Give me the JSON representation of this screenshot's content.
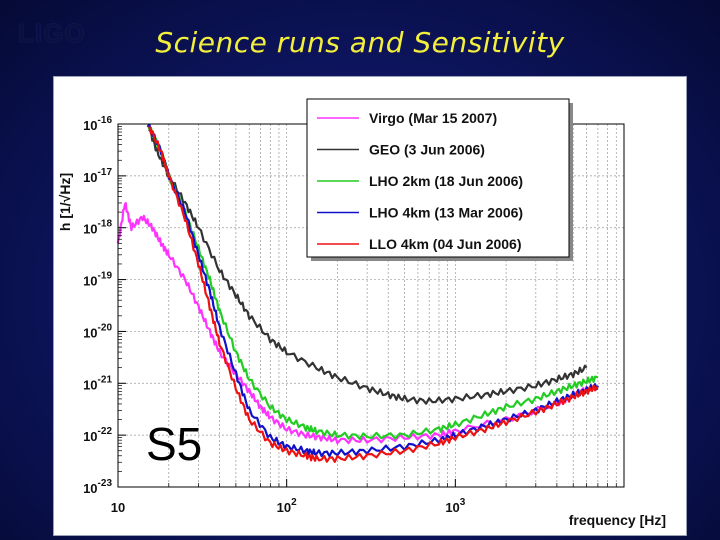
{
  "slide": {
    "logo": "LIGO",
    "title": "Science runs and Sensitivity"
  },
  "colors": {
    "background": "#0d145c",
    "title": "#f4ef3a",
    "Virgo": "#ff33ff",
    "GEO": "#333333",
    "LHO2km": "#22cc22",
    "LHO4km": "#1111cc",
    "LLO4km": "#ee1111"
  },
  "chart_data": {
    "type": "line",
    "title": "",
    "xlabel": "frequency [Hz]",
    "ylabel": "h [1/√Hz]",
    "xscale": "log",
    "yscale": "log",
    "xlim": [
      10,
      10000
    ],
    "ylim": [
      1e-23,
      1e-16
    ],
    "grid": true,
    "legend": "top-right",
    "annotation": "S5",
    "x_tick_labels": [
      {
        "value": 10,
        "base": "10",
        "exp": ""
      },
      {
        "value": 100,
        "base": "10",
        "exp": "2"
      },
      {
        "value": 1000,
        "base": "10",
        "exp": "3"
      }
    ],
    "y_tick_labels": [
      {
        "value": 1e-16,
        "base": "10",
        "exp": "-16"
      },
      {
        "value": 1e-17,
        "base": "10",
        "exp": "-17"
      },
      {
        "value": 1e-18,
        "base": "10",
        "exp": "-18"
      },
      {
        "value": 1e-19,
        "base": "10",
        "exp": "-19"
      },
      {
        "value": 1e-20,
        "base": "10",
        "exp": "-20"
      },
      {
        "value": 1e-21,
        "base": "10",
        "exp": "-21"
      },
      {
        "value": 1e-22,
        "base": "10",
        "exp": "-22"
      },
      {
        "value": 1e-23,
        "base": "10",
        "exp": "-23"
      }
    ],
    "series": [
      {
        "name": "Virgo (Mar 15 2007)",
        "color_key": "Virgo",
        "x": [
          10,
          11,
          12,
          14,
          16,
          18,
          20,
          25,
          30,
          35,
          40,
          50,
          60,
          70,
          80,
          100,
          130,
          160,
          200,
          300,
          500,
          800,
          1000,
          2000,
          4000,
          5000,
          6000
        ],
        "y": [
          5e-19,
          3e-18,
          1e-18,
          1.6e-18,
          1e-18,
          5e-19,
          3e-19,
          1e-19,
          3e-20,
          1e-20,
          4e-21,
          1.5e-21,
          7e-22,
          3.5e-22,
          2.2e-22,
          1.3e-22,
          1e-22,
          9e-23,
          8e-23,
          8e-23,
          9e-23,
          1e-22,
          1.2e-22,
          2e-22,
          4e-22,
          6e-22,
          8e-22
        ]
      },
      {
        "name": "GEO (3 Jun 2006)",
        "color_key": "GEO",
        "x": [
          15,
          17,
          20,
          25,
          30,
          40,
          50,
          60,
          80,
          100,
          150,
          200,
          300,
          400,
          500,
          700,
          1000,
          1500,
          2000,
          3000,
          4000,
          5000,
          6000
        ],
        "y": [
          1e-16,
          3e-17,
          1e-17,
          3e-18,
          1e-18,
          1.5e-19,
          5e-20,
          2e-20,
          7e-21,
          4e-21,
          2e-21,
          1.3e-21,
          8e-22,
          6e-22,
          5e-22,
          4.5e-22,
          5e-22,
          6e-22,
          7e-22,
          9e-22,
          1.2e-21,
          1.5e-21,
          2e-21
        ]
      },
      {
        "name": "LHO 2km (18 Jun 2006)",
        "color_key": "LHO2km",
        "x": [
          15,
          18,
          20,
          25,
          30,
          35,
          40,
          50,
          60,
          80,
          100,
          130,
          150,
          200,
          300,
          500,
          800,
          1000,
          1500,
          2000,
          3000,
          4000,
          5000,
          6000,
          7000
        ],
        "y": [
          1e-16,
          3e-17,
          1e-17,
          2e-18,
          4e-19,
          1e-19,
          2.5e-20,
          4e-21,
          1.2e-21,
          3.5e-22,
          2e-22,
          1.4e-22,
          1.2e-22,
          1e-22,
          9.5e-23,
          1e-22,
          1.3e-22,
          1.6e-22,
          2.5e-22,
          3.5e-22,
          5e-22,
          7e-22,
          9e-22,
          1.1e-21,
          1.3e-21
        ]
      },
      {
        "name": "LHO 4km (13 Mar 2006)",
        "color_key": "LHO4km",
        "x": [
          15,
          18,
          20,
          25,
          30,
          35,
          40,
          50,
          60,
          80,
          100,
          130,
          150,
          200,
          300,
          500,
          800,
          1000,
          1500,
          2000,
          3000,
          4000,
          5000,
          6000,
          7000
        ],
        "y": [
          1e-16,
          3e-17,
          1e-17,
          2e-18,
          3e-19,
          6e-20,
          1.2e-20,
          1.5e-21,
          3e-22,
          9e-23,
          6e-23,
          5e-23,
          4.5e-23,
          4.5e-23,
          5e-23,
          6e-23,
          8e-23,
          1e-22,
          1.5e-22,
          2e-22,
          3e-22,
          4.5e-22,
          6e-22,
          7.5e-22,
          9e-22
        ]
      },
      {
        "name": "LLO 4km (04 Jun 2006)",
        "color_key": "LLO4km",
        "x": [
          15,
          18,
          20,
          25,
          30,
          35,
          40,
          50,
          60,
          80,
          100,
          130,
          150,
          200,
          300,
          500,
          800,
          1000,
          1500,
          2000,
          3000,
          4000,
          5000,
          6000,
          7000
        ],
        "y": [
          1e-16,
          3e-17,
          1e-17,
          1.5e-18,
          2e-19,
          3e-20,
          6e-21,
          8e-22,
          2e-22,
          7e-23,
          5e-23,
          4e-23,
          3.5e-23,
          3.5e-23,
          4e-23,
          5e-23,
          7e-23,
          9e-23,
          1.3e-22,
          1.8e-22,
          2.8e-22,
          4e-22,
          5.5e-22,
          7e-22,
          8.5e-22
        ]
      }
    ]
  }
}
